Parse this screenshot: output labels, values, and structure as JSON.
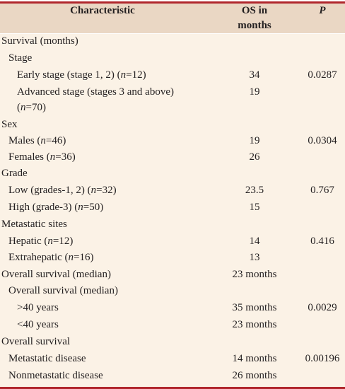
{
  "header": {
    "characteristic": "Characteristic",
    "os_line1": "OS in",
    "os_line2": "months",
    "p": "P"
  },
  "rows": [
    {
      "label": "Survival (months)",
      "os": "",
      "p": ""
    },
    {
      "label": "Stage",
      "os": "",
      "p": ""
    },
    {
      "label_pre": "Early stage (stage 1, 2) (",
      "n": "n",
      "label_post": "=12)",
      "os": "34",
      "p": "0.0287"
    },
    {
      "label": "Advanced stage (stages 3 and above)",
      "os": "19",
      "p": ""
    },
    {
      "label_pre": "(",
      "n": "n",
      "label_post": "=70)",
      "os": "",
      "p": ""
    },
    {
      "label": "Sex",
      "os": "",
      "p": ""
    },
    {
      "label_pre": "Males (",
      "n": "n",
      "label_post": "=46)",
      "os": "19",
      "p": "0.0304"
    },
    {
      "label_pre": "Females (",
      "n": "n",
      "label_post": "=36)",
      "os": "26",
      "p": ""
    },
    {
      "label": "Grade",
      "os": "",
      "p": ""
    },
    {
      "label_pre": "Low (grades-1, 2) (",
      "n": "n",
      "label_post": "=32)",
      "os": "23.5",
      "p": "0.767"
    },
    {
      "label_pre": "High (grade-3) (",
      "n": "n",
      "label_post": "=50)",
      "os": "15",
      "p": ""
    },
    {
      "label": "Metastatic sites",
      "os": "",
      "p": ""
    },
    {
      "label_pre": "Hepatic (",
      "n": "n",
      "label_post": "=12)",
      "os": "14",
      "p": "0.416"
    },
    {
      "label_pre": "Extrahepatic (",
      "n": "n",
      "label_post": "=16)",
      "os": "13",
      "p": ""
    },
    {
      "label": "Overall survival (median)",
      "os": "23 months",
      "p": ""
    },
    {
      "label": "Overall survival (median)",
      "os": "",
      "p": ""
    },
    {
      "label": ">40 years",
      "os": "35 months",
      "p": "0.0029"
    },
    {
      "label": "<40 years",
      "os": "23 months",
      "p": ""
    },
    {
      "label": "Overall survival",
      "os": "",
      "p": ""
    },
    {
      "label": "Metastatic disease",
      "os": "14 months",
      "p": "0.00196"
    },
    {
      "label": "Nonmetastatic disease",
      "os": "26 months",
      "p": ""
    }
  ]
}
